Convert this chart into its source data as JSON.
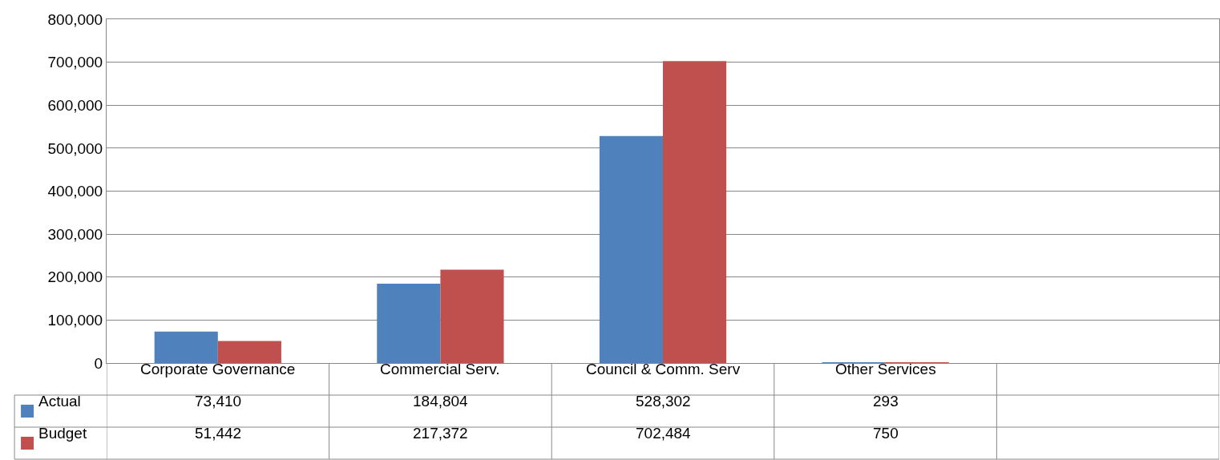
{
  "chart_data": {
    "type": "bar",
    "categories": [
      "Corporate Governance",
      "Commercial Serv.",
      "Council & Comm. Serv",
      "Other Services",
      null
    ],
    "series": [
      {
        "name": "Actual",
        "color": "#4f81bd",
        "values": [
          73410,
          184804,
          528302,
          293,
          null
        ],
        "value_labels": [
          "73,410",
          "184,804",
          "528,302",
          "293",
          null
        ]
      },
      {
        "name": "Budget",
        "color": "#c0504d",
        "values": [
          51442,
          217372,
          702484,
          750,
          null
        ],
        "value_labels": [
          "51,442",
          "217,372",
          "702,484",
          "750",
          null
        ]
      }
    ],
    "ylim": [
      0,
      800000
    ],
    "yticks": [
      {
        "value": 0,
        "label": "0"
      },
      {
        "value": 100000,
        "label": "100,000"
      },
      {
        "value": 200000,
        "label": "200,000"
      },
      {
        "value": 300000,
        "label": "300,000"
      },
      {
        "value": 400000,
        "label": "400,000"
      },
      {
        "value": 500000,
        "label": "500,000"
      },
      {
        "value": 600000,
        "label": "600,000"
      },
      {
        "value": 700000,
        "label": "700,000"
      },
      {
        "value": 800000,
        "label": "800,000"
      }
    ],
    "grid": "y",
    "legend": "bottom"
  }
}
